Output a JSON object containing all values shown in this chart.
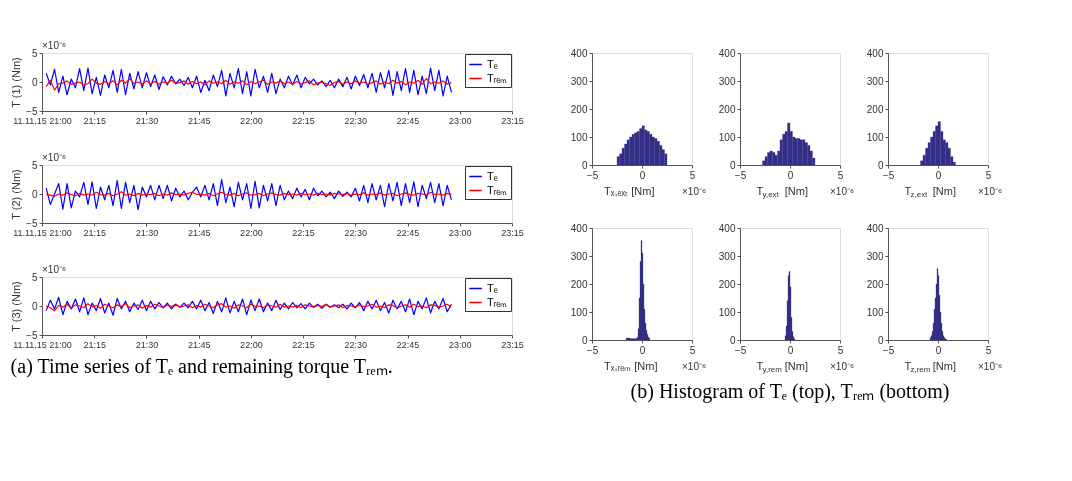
{
  "chart_data": [
    {
      "type": "line",
      "ylabel": "T (1) (Nm)",
      "xlim": [
        21,
        23.25
      ],
      "ylim": [
        -5,
        5
      ],
      "yticks": [
        -5,
        0,
        5
      ],
      "legend": "top right",
      "annotations": [
        "×10⁻⁶"
      ],
      "xticks": [
        {
          "value": 21,
          "label": "11.11.15 21:00"
        },
        {
          "value": 21.25,
          "label": "21:15"
        },
        {
          "value": 21.5,
          "label": "21:30"
        },
        {
          "value": 21.75,
          "label": "21:45"
        },
        {
          "value": 22,
          "label": "22:00"
        },
        {
          "value": 22.25,
          "label": "22:15"
        },
        {
          "value": 22.5,
          "label": "22:30"
        },
        {
          "value": 22.75,
          "label": "22:45"
        },
        {
          "value": 23,
          "label": "23:00"
        },
        {
          "value": 23.25,
          "label": "23:15"
        }
      ],
      "x": [
        21.02,
        21.04,
        21.06,
        21.08,
        21.1,
        21.12,
        21.14,
        21.16,
        21.18,
        21.2,
        21.22,
        21.24,
        21.26,
        21.28,
        21.3,
        21.32,
        21.34,
        21.36,
        21.38,
        21.4,
        21.42,
        21.44,
        21.46,
        21.48,
        21.5,
        21.52,
        21.54,
        21.56,
        21.58,
        21.6,
        21.62,
        21.64,
        21.66,
        21.68,
        21.7,
        21.72,
        21.74,
        21.76,
        21.78,
        21.8,
        21.82,
        21.84,
        21.86,
        21.88,
        21.9,
        21.92,
        21.94,
        21.96,
        21.98,
        22.0,
        22.02,
        22.04,
        22.06,
        22.08,
        22.1,
        22.12,
        22.14,
        22.16,
        22.18,
        22.2,
        22.22,
        22.24,
        22.26,
        22.28,
        22.3,
        22.32,
        22.34,
        22.36,
        22.38,
        22.4,
        22.42,
        22.44,
        22.46,
        22.48,
        22.5,
        22.52,
        22.54,
        22.56,
        22.58,
        22.6,
        22.62,
        22.64,
        22.66,
        22.68,
        22.7,
        22.72,
        22.74,
        22.76,
        22.78,
        22.8,
        22.82,
        22.84,
        22.86,
        22.88,
        22.9,
        22.92,
        22.94,
        22.96
      ],
      "series": [
        {
          "name": "Tₑ",
          "color": "#0000ff",
          "values": [
            1.5,
            -0.5,
            2.2,
            -1.8,
            1.0,
            -2.2,
            0.5,
            -1.0,
            2.3,
            -1.5,
            2.4,
            -2.0,
            0.8,
            -2.3,
            1.2,
            -1.0,
            2.0,
            -1.8,
            2.2,
            -2.2,
            1.5,
            -1.2,
            1.8,
            -1.0,
            1.6,
            -0.8,
            1.2,
            -1.3,
            0.9,
            -0.5,
            1.0,
            -0.3,
            0.5,
            -0.6,
            0.8,
            -1.0,
            1.0,
            -1.8,
            0.3,
            -1.5,
            1.2,
            -0.8,
            2.0,
            -2.4,
            1.5,
            -1.0,
            2.3,
            -2.0,
            1.8,
            -2.4,
            2.2,
            -1.0,
            1.0,
            -1.8,
            1.5,
            -2.0,
            0.5,
            -1.0,
            1.0,
            -0.5,
            1.2,
            -1.0,
            0.8,
            -0.3,
            0.5,
            -0.5,
            0.2,
            -0.8,
            0.3,
            -1.0,
            0.5,
            -0.8,
            0.8,
            -1.2,
            1.0,
            -0.6,
            1.3,
            -1.0,
            1.5,
            -1.8,
            1.6,
            -1.0,
            2.0,
            -2.3,
            1.8,
            -1.5,
            2.3,
            -1.8,
            2.0,
            -2.2,
            1.0,
            -2.0,
            2.4,
            -1.5,
            2.0,
            -2.4,
            1.0,
            -1.8
          ]
        },
        {
          "name": "Tᵣₑₘ",
          "color": "#ff0000",
          "values": [
            -0.8,
            0.3,
            -1.4,
            -0.3,
            -0.2,
            0.2,
            -0.4,
            -0.2,
            0.0,
            -0.5,
            -0.3,
            0.5,
            -0.2,
            -0.4,
            0.1,
            -0.3,
            0.2,
            -0.5,
            0.3,
            -0.2,
            0.6,
            -0.3,
            0.0,
            -0.4,
            0.2,
            -0.3,
            0.1,
            -0.4,
            0.0,
            -0.2,
            0.3,
            -0.3,
            -0.1,
            0.2,
            -0.4,
            0.1,
            -0.3,
            0.0,
            -0.5,
            0.2,
            -0.2,
            0.0,
            -0.3,
            0.3,
            -0.4,
            0.0,
            -0.2,
            0.2,
            -0.5,
            0.1,
            -0.3,
            0.0,
            0.3,
            -0.4,
            0.0,
            -0.2,
            0.2,
            -0.3,
            0.0,
            -0.4,
            0.1,
            -0.3,
            -0.1,
            0.2,
            -0.5,
            -0.2,
            0.0,
            -0.3,
            -0.6,
            -0.1,
            0.1,
            -0.4,
            0.0,
            -0.3,
            0.2,
            -0.2,
            0.0,
            -0.4,
            -0.1,
            0.2,
            -0.4,
            0.0,
            -0.3,
            0.3,
            -0.2,
            0.1,
            -0.5,
            0.0,
            -0.2,
            0.3,
            -0.4,
            0.6,
            -0.3,
            0.0,
            -0.2,
            0.2,
            -0.4,
            -0.1
          ]
        }
      ]
    },
    {
      "type": "line",
      "ylabel": "T (2) (Nm)",
      "xlim": [
        21,
        23.25
      ],
      "ylim": [
        -5,
        5
      ],
      "yticks": [
        -5,
        0,
        5
      ],
      "legend": "top right",
      "annotations": [
        "×10⁻⁶"
      ],
      "xticks": [
        {
          "value": 21,
          "label": "11.11.15 21:00"
        },
        {
          "value": 21.25,
          "label": "21:15"
        },
        {
          "value": 21.5,
          "label": "21:30"
        },
        {
          "value": 21.75,
          "label": "21:45"
        },
        {
          "value": 22,
          "label": "22:00"
        },
        {
          "value": 22.25,
          "label": "22:15"
        },
        {
          "value": 22.5,
          "label": "22:30"
        },
        {
          "value": 22.75,
          "label": "22:45"
        },
        {
          "value": 23,
          "label": "23:00"
        },
        {
          "value": 23.25,
          "label": "23:15"
        }
      ],
      "x": [
        21.02,
        21.04,
        21.06,
        21.08,
        21.1,
        21.12,
        21.14,
        21.16,
        21.18,
        21.2,
        21.22,
        21.24,
        21.26,
        21.28,
        21.3,
        21.32,
        21.34,
        21.36,
        21.38,
        21.4,
        21.42,
        21.44,
        21.46,
        21.48,
        21.5,
        21.52,
        21.54,
        21.56,
        21.58,
        21.6,
        21.62,
        21.64,
        21.66,
        21.68,
        21.7,
        21.72,
        21.74,
        21.76,
        21.78,
        21.8,
        21.82,
        21.84,
        21.86,
        21.88,
        21.9,
        21.92,
        21.94,
        21.96,
        21.98,
        22.0,
        22.02,
        22.04,
        22.06,
        22.08,
        22.1,
        22.12,
        22.14,
        22.16,
        22.18,
        22.2,
        22.22,
        22.24,
        22.26,
        22.28,
        22.3,
        22.32,
        22.34,
        22.36,
        22.38,
        22.4,
        22.42,
        22.44,
        22.46,
        22.48,
        22.5,
        22.52,
        22.54,
        22.56,
        22.58,
        22.6,
        22.62,
        22.64,
        22.66,
        22.68,
        22.7,
        22.72,
        22.74,
        22.76,
        22.78,
        22.8,
        22.82,
        22.84,
        22.86,
        22.88,
        22.9,
        22.92,
        22.94,
        22.96
      ],
      "series": [
        {
          "name": "Tₑ",
          "color": "#0000ff",
          "values": [
            1.0,
            -1.8,
            0.0,
            1.8,
            -2.6,
            1.8,
            -2.4,
            0.5,
            -0.5,
            2.0,
            -1.8,
            2.1,
            -2.5,
            1.2,
            -1.0,
            1.5,
            -2.0,
            2.3,
            -2.5,
            2.0,
            -1.5,
            1.5,
            -2.7,
            1.2,
            -0.5,
            1.5,
            -1.0,
            1.5,
            -0.8,
            1.5,
            -1.2,
            1.0,
            -0.5,
            0.5,
            -1.0,
            0.3,
            1.2,
            -0.5,
            1.5,
            -1.0,
            1.8,
            -2.0,
            2.5,
            -1.5,
            1.2,
            -2.2,
            2.0,
            -1.0,
            1.8,
            -2.5,
            2.2,
            -2.4,
            1.5,
            -1.2,
            1.8,
            -2.0,
            1.5,
            -1.0,
            0.5,
            -0.8,
            1.0,
            -0.5,
            0.8,
            -1.0,
            1.0,
            -0.3,
            0.5,
            -0.5,
            0.3,
            -0.8,
            0.5,
            -0.4,
            0.3,
            -0.5,
            1.0,
            -1.2,
            1.5,
            -1.5,
            1.8,
            -1.0,
            1.5,
            -2.2,
            1.8,
            -1.2,
            2.0,
            -2.0,
            1.8,
            -1.5,
            2.1,
            -2.2,
            1.5,
            -0.8,
            2.0,
            -1.5,
            1.8,
            -2.0,
            1.5,
            -1.0
          ]
        },
        {
          "name": "Tᵣₑₘ",
          "color": "#ff0000",
          "values": [
            -0.1,
            -0.2,
            -0.4,
            0.0,
            -0.2,
            0.2,
            -0.1,
            -0.3,
            0.1,
            -0.2,
            0.0,
            -0.2,
            0.3,
            -0.1,
            -0.2,
            0.1,
            -0.3,
            0.0,
            0.4,
            -0.2,
            0.0,
            -0.3,
            0.1,
            -0.2,
            0.0,
            -0.1,
            0.1,
            -0.3,
            0.0,
            -0.2,
            0.2,
            -0.1,
            0.0,
            -0.2,
            0.1,
            0.3,
            -0.1,
            0.0,
            -0.2,
            0.1,
            -0.3,
            0.0,
            0.3,
            -0.1,
            -0.2,
            0.1,
            -0.3,
            0.0,
            0.2,
            -0.2,
            -0.1,
            0.1,
            -0.3,
            0.0,
            0.2,
            -0.1,
            -0.2,
            0.1,
            -0.1,
            0.0,
            -0.2,
            0.1,
            -0.1,
            0.0,
            -0.2,
            0.1,
            -0.1,
            0.0,
            -0.2,
            0.1,
            0.0,
            -0.1,
            0.1,
            -0.2,
            0.0,
            -0.1,
            0.2,
            -0.2,
            0.0,
            -0.1,
            0.2,
            -0.2,
            0.0,
            0.1,
            -0.3,
            0.0,
            0.2,
            -0.1,
            -0.2,
            0.1,
            0.0,
            -0.2,
            0.3,
            -0.1,
            0.0,
            -0.2,
            0.1,
            -0.1
          ]
        }
      ]
    },
    {
      "type": "line",
      "ylabel": "T (3) (Nm)",
      "xlim": [
        21,
        23.25
      ],
      "ylim": [
        -5,
        5
      ],
      "yticks": [
        -5,
        0,
        5
      ],
      "legend": "top right",
      "annotations": [
        "×10⁻⁶",
        "(a) Time series of Tₑ and remaining torque Tᵣₑₘ."
      ],
      "xticks": [
        {
          "value": 21,
          "label": "11.11.15 21:00"
        },
        {
          "value": 21.25,
          "label": "21:15"
        },
        {
          "value": 21.5,
          "label": "21:30"
        },
        {
          "value": 21.75,
          "label": "21:45"
        },
        {
          "value": 22,
          "label": "22:00"
        },
        {
          "value": 22.25,
          "label": "22:15"
        },
        {
          "value": 22.5,
          "label": "22:30"
        },
        {
          "value": 22.75,
          "label": "22:45"
        },
        {
          "value": 23,
          "label": "23:00"
        },
        {
          "value": 23.25,
          "label": "23:15"
        }
      ],
      "x": [
        21.02,
        21.04,
        21.06,
        21.08,
        21.1,
        21.12,
        21.14,
        21.16,
        21.18,
        21.2,
        21.22,
        21.24,
        21.26,
        21.28,
        21.3,
        21.32,
        21.34,
        21.36,
        21.38,
        21.4,
        21.42,
        21.44,
        21.46,
        21.48,
        21.5,
        21.52,
        21.54,
        21.56,
        21.58,
        21.6,
        21.62,
        21.64,
        21.66,
        21.68,
        21.7,
        21.72,
        21.74,
        21.76,
        21.78,
        21.8,
        21.82,
        21.84,
        21.86,
        21.88,
        21.9,
        21.92,
        21.94,
        21.96,
        21.98,
        22.0,
        22.02,
        22.04,
        22.06,
        22.08,
        22.1,
        22.12,
        22.14,
        22.16,
        22.18,
        22.2,
        22.22,
        22.24,
        22.26,
        22.28,
        22.3,
        22.32,
        22.34,
        22.36,
        22.38,
        22.4,
        22.42,
        22.44,
        22.46,
        22.48,
        22.5,
        22.52,
        22.54,
        22.56,
        22.58,
        22.6,
        22.62,
        22.64,
        22.66,
        22.68,
        22.7,
        22.72,
        22.74,
        22.76,
        22.78,
        22.8,
        22.82,
        22.84,
        22.86,
        22.88,
        22.9,
        22.92,
        22.94,
        22.96
      ],
      "series": [
        {
          "name": "Tₑ",
          "color": "#0000ff",
          "values": [
            -0.8,
            1.0,
            -0.5,
            1.5,
            -1.5,
            0.8,
            -0.5,
            1.2,
            -1.0,
            1.4,
            -1.5,
            0.5,
            -0.8,
            1.3,
            -1.2,
            0.5,
            -1.6,
            1.3,
            -0.5,
            0.8,
            -1.0,
            0.5,
            -0.6,
            1.0,
            -0.8,
            0.8,
            -0.5,
            0.6,
            -0.3,
            0.5,
            -0.5,
            0.3,
            -0.2,
            0.5,
            -0.3,
            0.8,
            -0.5,
            1.0,
            -0.8,
            0.6,
            -1.3,
            0.8,
            -1.0,
            1.4,
            -1.2,
            0.8,
            -1.0,
            1.2,
            -1.5,
            1.0,
            -0.8,
            1.2,
            -1.0,
            0.5,
            -0.8,
            1.0,
            -0.6,
            0.5,
            -0.5,
            0.6,
            -0.3,
            0.4,
            -0.5,
            0.5,
            -0.2,
            0.3,
            -0.4,
            0.3,
            -0.2,
            0.2,
            -0.3,
            0.3,
            -0.5,
            0.5,
            -0.3,
            0.6,
            -0.8,
            0.8,
            -0.5,
            1.0,
            -0.8,
            0.6,
            -1.2,
            1.0,
            -0.5,
            0.8,
            -1.0,
            1.2,
            -1.5,
            0.8,
            -0.5,
            1.4,
            -1.2,
            0.8,
            -0.5,
            1.3,
            -1.0,
            0.3
          ]
        },
        {
          "name": "Tᵣₑₘ",
          "color": "#ff0000",
          "values": [
            0.0,
            -0.3,
            -0.8,
            0.1,
            -0.2,
            0.3,
            -0.4,
            0.2,
            0.0,
            -0.3,
            0.4,
            -0.2,
            0.1,
            -0.4,
            0.3,
            0.0,
            -0.3,
            0.2,
            -0.1,
            0.4,
            -0.3,
            0.0,
            0.2,
            -0.4,
            0.1,
            -0.2,
            0.3,
            0.0,
            -0.3,
            0.2,
            -0.1,
            0.3,
            -0.2,
            0.0,
            0.2,
            -0.3,
            0.1,
            -0.2,
            0.3,
            0.0,
            -0.3,
            0.2,
            0.4,
            -0.2,
            0.0,
            -0.4,
            0.2,
            0.0,
            -0.3,
            0.3,
            -0.1,
            0.0,
            -0.3,
            0.2,
            0.0,
            -0.2,
            0.3,
            -0.2,
            0.0,
            -0.2,
            0.1,
            -0.3,
            0.2,
            0.0,
            -0.2,
            0.1,
            -0.1,
            0.3,
            -0.2,
            0.0,
            0.2,
            -0.3,
            0.1,
            0.0,
            -0.2,
            0.2,
            -0.1,
            0.0,
            0.3,
            -0.2,
            0.0,
            -0.3,
            0.2,
            0.1,
            -0.4,
            0.0,
            0.2,
            -0.2,
            0.3,
            -0.1,
            0.0,
            -0.3,
            0.2,
            0.1,
            -0.2,
            0.0,
            0.3,
            -0.2
          ]
        }
      ]
    },
    {
      "type": "histogram",
      "xlabel": "Tₓ,ₑₓₜ [Nm]",
      "color": "#342e86",
      "xlim": [
        -5,
        5
      ],
      "xticks": [
        -5,
        0,
        5
      ],
      "ylim": [
        0,
        400
      ],
      "yticks": [
        0,
        100,
        200,
        300,
        400
      ],
      "annotations": [
        "×10⁻⁶"
      ],
      "bins": [
        -2.5,
        -2.25,
        -2.0,
        -1.75,
        -1.5,
        -1.25,
        -1.0,
        -0.75,
        -0.5,
        -0.25,
        0.0,
        0.25,
        0.5,
        0.75,
        1.0,
        1.25,
        1.5,
        1.75,
        2.0,
        2.25,
        2.5
      ],
      "values": [
        30,
        40,
        60,
        75,
        90,
        100,
        110,
        115,
        120,
        130,
        140,
        125,
        120,
        110,
        100,
        95,
        85,
        70,
        55,
        40
      ]
    },
    {
      "type": "histogram",
      "xlabel": "T$_{y,ext}$ [Nm]",
      "color": "#342e86",
      "xlim": [
        -5,
        5
      ],
      "xticks": [
        -5,
        0,
        5
      ],
      "ylim": [
        0,
        400
      ],
      "yticks": [
        0,
        100,
        200,
        300,
        400
      ],
      "annotations": [
        "×10⁻⁶"
      ],
      "bins": [
        -2.75,
        -2.5,
        -2.25,
        -2.0,
        -1.75,
        -1.5,
        -1.25,
        -1.0,
        -0.75,
        -0.5,
        -0.25,
        0.0,
        0.25,
        0.5,
        0.75,
        1.0,
        1.25,
        1.5,
        1.75,
        2.0,
        2.25,
        2.5
      ],
      "values": [
        15,
        30,
        45,
        50,
        45,
        35,
        50,
        90,
        110,
        120,
        150,
        120,
        100,
        95,
        95,
        90,
        90,
        80,
        70,
        50,
        25
      ]
    },
    {
      "type": "histogram",
      "xlabel": "T$_{z,ext}$ [Nm]",
      "color": "#342e86",
      "xlim": [
        -5,
        5
      ],
      "xticks": [
        -5,
        0,
        5
      ],
      "ylim": [
        0,
        400
      ],
      "yticks": [
        0,
        100,
        200,
        300,
        400
      ],
      "annotations": [
        "×10⁻⁶"
      ],
      "bins": [
        -1.75,
        -1.5,
        -1.25,
        -1.0,
        -0.75,
        -0.5,
        -0.25,
        0.0,
        0.25,
        0.5,
        0.75,
        1.0,
        1.25,
        1.5,
        1.75
      ],
      "values": [
        15,
        35,
        60,
        80,
        100,
        120,
        140,
        155,
        120,
        90,
        80,
        60,
        30,
        10
      ]
    },
    {
      "type": "histogram",
      "xlabel": "Tₓ,ᵣₑₘ [Nm]",
      "color": "#342e86",
      "xlim": [
        -5,
        5
      ],
      "xticks": [
        -5,
        0,
        5
      ],
      "ylim": [
        0,
        400
      ],
      "yticks": [
        0,
        100,
        200,
        300,
        400
      ],
      "annotations": [
        "×10⁻⁶"
      ],
      "bins": [
        -1.6,
        -1.2,
        -0.5,
        -0.4,
        -0.3,
        -0.2,
        -0.1,
        0.0,
        0.1,
        0.2,
        0.3,
        0.4,
        0.5,
        0.6,
        0.7,
        0.8
      ],
      "values": [
        7,
        5,
        10,
        40,
        150,
        280,
        355,
        310,
        200,
        110,
        60,
        35,
        20,
        10,
        5
      ]
    },
    {
      "type": "histogram",
      "xlabel": "T$_{y,rem}$ [Nm]",
      "color": "#342e86",
      "xlim": [
        -5,
        5
      ],
      "xticks": [
        -5,
        0,
        5
      ],
      "ylim": [
        0,
        400
      ],
      "yticks": [
        0,
        100,
        200,
        300,
        400
      ],
      "annotations": [
        "×10⁻⁶",
        "(b) Histogram of Tₑ (top), Tᵣₑₘ (bottom)"
      ],
      "bins": [
        -0.6,
        -0.5,
        -0.4,
        -0.3,
        -0.2,
        -0.1,
        0.0,
        0.1,
        0.2,
        0.3,
        0.4,
        0.5
      ],
      "values": [
        null,
        15,
        50,
        140,
        230,
        245,
        190,
        80,
        30,
        12,
        4
      ]
    },
    {
      "type": "histogram",
      "xlabel": "T$_{z,rem}$ [Nm]",
      "color": "#342e86",
      "xlim": [
        -5,
        5
      ],
      "xticks": [
        -5,
        0,
        5
      ],
      "ylim": [
        0,
        400
      ],
      "yticks": [
        0,
        100,
        200,
        300,
        400
      ],
      "annotations": [
        "×10⁻⁶"
      ],
      "bins": [
        -0.9,
        -0.8,
        -0.7,
        -0.6,
        -0.5,
        -0.4,
        -0.3,
        -0.2,
        -0.1,
        0.0,
        0.1,
        0.2,
        0.3,
        0.4,
        0.5,
        0.6,
        0.7,
        0.8,
        0.9
      ],
      "values": [
        null,
        8,
        15,
        30,
        60,
        110,
        150,
        200,
        255,
        230,
        160,
        100,
        60,
        30,
        15,
        8,
        4,
        2
      ]
    }
  ]
}
